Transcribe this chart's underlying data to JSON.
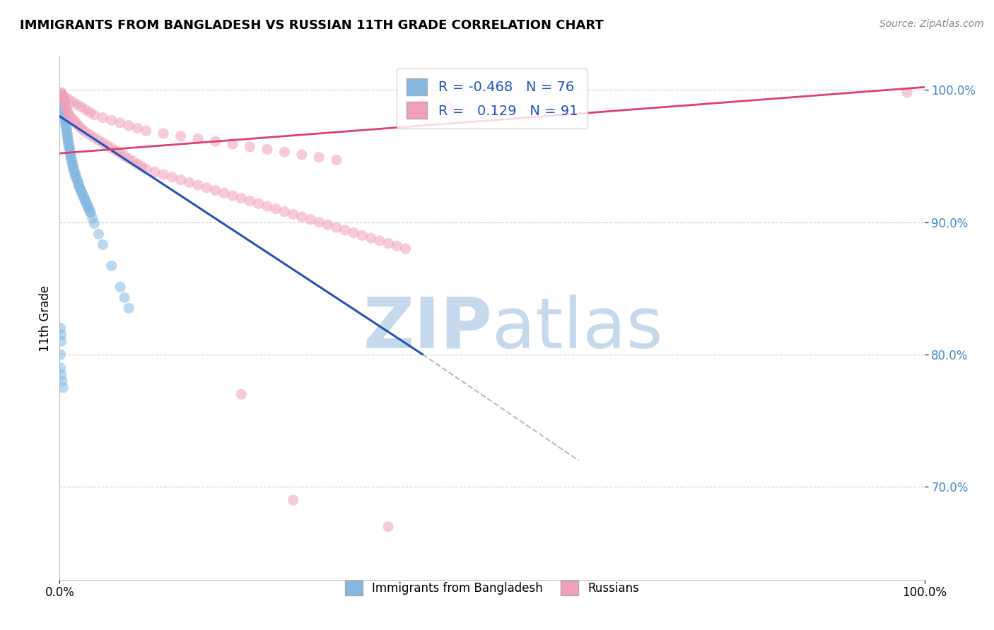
{
  "title": "IMMIGRANTS FROM BANGLADESH VS RUSSIAN 11TH GRADE CORRELATION CHART",
  "source": "Source: ZipAtlas.com",
  "ylabel": "11th Grade",
  "xlim": [
    0.0,
    1.0
  ],
  "ylim": [
    0.63,
    1.025
  ],
  "yticks": [
    0.7,
    0.8,
    0.9,
    1.0
  ],
  "ytick_labels": [
    "70.0%",
    "80.0%",
    "90.0%",
    "100.0%"
  ],
  "xtick_positions": [
    0.0,
    1.0
  ],
  "xtick_labels": [
    "0.0%",
    "100.0%"
  ],
  "legend_r_blue": "-0.468",
  "legend_n_blue": "76",
  "legend_r_pink": "0.129",
  "legend_n_pink": "91",
  "blue_color": "#85b8e0",
  "pink_color": "#f0a0b8",
  "blue_line_color": "#2255bb",
  "pink_line_color": "#e04070",
  "gray_line_color": "#bbbbbb",
  "watermark_zip": "ZIP",
  "watermark_atlas": "atlas",
  "watermark_color": "#c5d8ec",
  "blue_line_x": [
    0.0,
    0.42
  ],
  "blue_line_y": [
    0.98,
    0.8
  ],
  "gray_line_x": [
    0.42,
    0.6
  ],
  "gray_line_y": [
    0.8,
    0.72
  ],
  "pink_line_x": [
    0.0,
    1.0
  ],
  "pink_line_y": [
    0.952,
    1.002
  ],
  "blue_scatter_x": [
    0.002,
    0.003,
    0.003,
    0.003,
    0.004,
    0.004,
    0.004,
    0.005,
    0.005,
    0.005,
    0.006,
    0.006,
    0.006,
    0.007,
    0.007,
    0.007,
    0.008,
    0.008,
    0.008,
    0.009,
    0.009,
    0.009,
    0.01,
    0.01,
    0.01,
    0.011,
    0.011,
    0.012,
    0.012,
    0.012,
    0.013,
    0.013,
    0.014,
    0.014,
    0.015,
    0.015,
    0.016,
    0.016,
    0.017,
    0.018,
    0.018,
    0.019,
    0.02,
    0.021,
    0.022,
    0.022,
    0.023,
    0.024,
    0.025,
    0.026,
    0.027,
    0.028,
    0.029,
    0.03,
    0.031,
    0.032,
    0.033,
    0.034,
    0.035,
    0.036,
    0.038,
    0.04,
    0.045,
    0.05,
    0.06,
    0.07,
    0.075,
    0.08,
    0.001,
    0.002,
    0.002,
    0.001,
    0.001,
    0.002,
    0.003,
    0.004
  ],
  "blue_scatter_y": [
    0.997,
    0.995,
    0.993,
    0.991,
    0.99,
    0.988,
    0.986,
    0.985,
    0.984,
    0.982,
    0.98,
    0.979,
    0.977,
    0.976,
    0.974,
    0.973,
    0.971,
    0.97,
    0.968,
    0.967,
    0.965,
    0.964,
    0.962,
    0.961,
    0.959,
    0.958,
    0.956,
    0.955,
    0.953,
    0.952,
    0.95,
    0.949,
    0.947,
    0.946,
    0.944,
    0.943,
    0.941,
    0.94,
    0.938,
    0.937,
    0.935,
    0.934,
    0.932,
    0.931,
    0.929,
    0.928,
    0.926,
    0.925,
    0.923,
    0.922,
    0.92,
    0.919,
    0.917,
    0.916,
    0.914,
    0.913,
    0.911,
    0.91,
    0.908,
    0.907,
    0.903,
    0.899,
    0.891,
    0.883,
    0.867,
    0.851,
    0.843,
    0.835,
    0.82,
    0.815,
    0.81,
    0.8,
    0.79,
    0.785,
    0.78,
    0.775
  ],
  "pink_scatter_x": [
    0.002,
    0.003,
    0.004,
    0.005,
    0.006,
    0.007,
    0.008,
    0.009,
    0.01,
    0.012,
    0.015,
    0.018,
    0.02,
    0.023,
    0.026,
    0.03,
    0.035,
    0.04,
    0.045,
    0.05,
    0.055,
    0.06,
    0.065,
    0.07,
    0.075,
    0.08,
    0.085,
    0.09,
    0.095,
    0.1,
    0.11,
    0.12,
    0.13,
    0.14,
    0.15,
    0.16,
    0.17,
    0.18,
    0.19,
    0.2,
    0.21,
    0.22,
    0.23,
    0.24,
    0.25,
    0.26,
    0.27,
    0.28,
    0.29,
    0.3,
    0.31,
    0.32,
    0.33,
    0.34,
    0.35,
    0.36,
    0.37,
    0.38,
    0.39,
    0.4,
    0.005,
    0.01,
    0.015,
    0.02,
    0.025,
    0.03,
    0.035,
    0.04,
    0.05,
    0.06,
    0.07,
    0.08,
    0.09,
    0.1,
    0.12,
    0.14,
    0.16,
    0.18,
    0.2,
    0.22,
    0.24,
    0.26,
    0.28,
    0.3,
    0.32,
    0.42,
    0.45,
    0.98,
    0.21,
    0.27,
    0.38
  ],
  "pink_scatter_y": [
    0.998,
    0.996,
    0.994,
    0.992,
    0.99,
    0.988,
    0.986,
    0.984,
    0.982,
    0.98,
    0.978,
    0.976,
    0.974,
    0.972,
    0.97,
    0.968,
    0.966,
    0.964,
    0.962,
    0.96,
    0.958,
    0.956,
    0.954,
    0.952,
    0.95,
    0.948,
    0.946,
    0.944,
    0.942,
    0.94,
    0.938,
    0.936,
    0.934,
    0.932,
    0.93,
    0.928,
    0.926,
    0.924,
    0.922,
    0.92,
    0.918,
    0.916,
    0.914,
    0.912,
    0.91,
    0.908,
    0.906,
    0.904,
    0.902,
    0.9,
    0.898,
    0.896,
    0.894,
    0.892,
    0.89,
    0.888,
    0.886,
    0.884,
    0.882,
    0.88,
    0.995,
    0.993,
    0.991,
    0.989,
    0.987,
    0.985,
    0.983,
    0.981,
    0.979,
    0.977,
    0.975,
    0.973,
    0.971,
    0.969,
    0.967,
    0.965,
    0.963,
    0.961,
    0.959,
    0.957,
    0.955,
    0.953,
    0.951,
    0.949,
    0.947,
    0.99,
    0.988,
    0.998,
    0.77,
    0.69,
    0.67
  ]
}
